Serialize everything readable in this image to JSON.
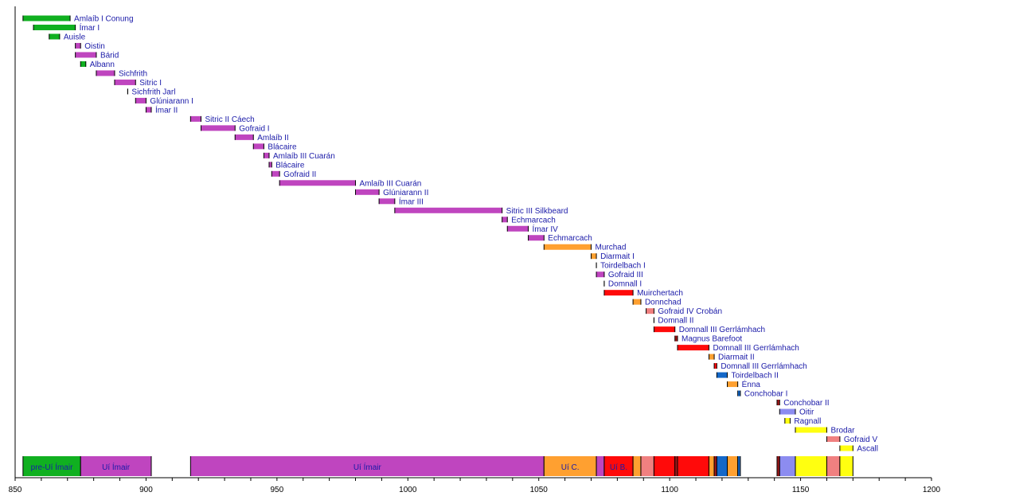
{
  "chart_data": {
    "type": "timeline",
    "xlim": [
      850,
      1200
    ],
    "x_ticks_major": [
      850,
      900,
      950,
      1000,
      1050,
      1100,
      1150,
      1200
    ],
    "x_tick_minor_step": 10,
    "grid": false,
    "colors": {
      "pre_ui_imair": "#10b020",
      "ui_imair": "#bf45bf",
      "ui_c": "#ffa030",
      "ui_b": "#ff0a0a",
      "norse": "#a01818",
      "salmon": "#f08080",
      "blue": "#1468c8",
      "lavender": "#8c8cf0",
      "yellow": "#ffff10"
    },
    "rows": [
      {
        "label": "Amlaíb I Conung",
        "start": 853,
        "end": 871,
        "group": "pre_ui_imair"
      },
      {
        "label": "Ímar I",
        "start": 857,
        "end": 873,
        "group": "pre_ui_imair"
      },
      {
        "label": "Auisle",
        "start": 863,
        "end": 867,
        "group": "pre_ui_imair"
      },
      {
        "label": "Oistin",
        "start": 873,
        "end": 875,
        "group": "ui_imair"
      },
      {
        "label": "Bárid",
        "start": 873,
        "end": 881,
        "group": "ui_imair"
      },
      {
        "label": "Albann",
        "start": 875,
        "end": 877,
        "group": "pre_ui_imair"
      },
      {
        "label": "Sichfrith",
        "start": 881,
        "end": 888,
        "group": "ui_imair"
      },
      {
        "label": "Sitric I",
        "start": 888,
        "end": 896,
        "group": "ui_imair"
      },
      {
        "label": "Sichfrith Jarl",
        "start": 893,
        "end": 893,
        "group": "ui_imair"
      },
      {
        "label": "Glúniarann I",
        "start": 896,
        "end": 900,
        "group": "ui_imair"
      },
      {
        "label": "Ímar II",
        "start": 900,
        "end": 902,
        "group": "ui_imair"
      },
      {
        "label": "Sitric II Cáech",
        "start": 917,
        "end": 921,
        "group": "ui_imair"
      },
      {
        "label": "Gofraid I",
        "start": 921,
        "end": 934,
        "group": "ui_imair"
      },
      {
        "label": "Amlaíb II",
        "start": 934,
        "end": 941,
        "group": "ui_imair"
      },
      {
        "label": "Blácaire",
        "start": 941,
        "end": 945,
        "group": "ui_imair"
      },
      {
        "label": "Amlaíb III Cuarán",
        "start": 945,
        "end": 947,
        "group": "ui_imair"
      },
      {
        "label": "Blácaire",
        "start": 947,
        "end": 948,
        "group": "ui_imair"
      },
      {
        "label": "Gofraid II",
        "start": 948,
        "end": 951,
        "group": "ui_imair"
      },
      {
        "label": "Amlaíb III Cuarán",
        "start": 951,
        "end": 980,
        "group": "ui_imair"
      },
      {
        "label": "Glúniarann II",
        "start": 980,
        "end": 989,
        "group": "ui_imair"
      },
      {
        "label": "Ímar III",
        "start": 989,
        "end": 995,
        "group": "ui_imair"
      },
      {
        "label": "Sitric III Silkbeard",
        "start": 995,
        "end": 1036,
        "group": "ui_imair"
      },
      {
        "label": "Echmarcach",
        "start": 1036,
        "end": 1038,
        "group": "ui_imair"
      },
      {
        "label": "Ímar IV",
        "start": 1038,
        "end": 1046,
        "group": "ui_imair"
      },
      {
        "label": "Echmarcach",
        "start": 1046,
        "end": 1052,
        "group": "ui_imair"
      },
      {
        "label": "Murchad",
        "start": 1052,
        "end": 1070,
        "group": "ui_c"
      },
      {
        "label": "Diarmait I",
        "start": 1070,
        "end": 1072,
        "group": "ui_c"
      },
      {
        "label": "Toirdelbach I",
        "start": 1072,
        "end": 1072,
        "group": "ui_c"
      },
      {
        "label": "Gofraid III",
        "start": 1072,
        "end": 1075,
        "group": "ui_imair"
      },
      {
        "label": "Domnall I",
        "start": 1075,
        "end": 1075,
        "group": "ui_b"
      },
      {
        "label": "Muirchertach",
        "start": 1075,
        "end": 1086,
        "group": "ui_b"
      },
      {
        "label": "Donnchad",
        "start": 1086,
        "end": 1089,
        "group": "ui_c"
      },
      {
        "label": "Gofraid IV Crobán",
        "start": 1091,
        "end": 1094,
        "group": "salmon"
      },
      {
        "label": "Domnall II",
        "start": 1094,
        "end": 1094,
        "group": "ui_b"
      },
      {
        "label": "Domnall III Gerrlámhach",
        "start": 1094,
        "end": 1102,
        "group": "ui_b"
      },
      {
        "label": "Magnus Barefoot",
        "start": 1102,
        "end": 1103,
        "group": "norse"
      },
      {
        "label": "Domnall III Gerrlámhach",
        "start": 1103,
        "end": 1115,
        "group": "ui_b"
      },
      {
        "label": "Diarmait II",
        "start": 1115,
        "end": 1117,
        "group": "ui_c"
      },
      {
        "label": "Domnall III Gerrlámhach",
        "start": 1117,
        "end": 1118,
        "group": "ui_b"
      },
      {
        "label": "Toirdelbach II",
        "start": 1118,
        "end": 1122,
        "group": "blue"
      },
      {
        "label": "Énna",
        "start": 1122,
        "end": 1126,
        "group": "ui_c"
      },
      {
        "label": "Conchobar I",
        "start": 1126,
        "end": 1127,
        "group": "blue"
      },
      {
        "label": "Conchobar II",
        "start": 1141,
        "end": 1142,
        "group": "norse"
      },
      {
        "label": "Oitir",
        "start": 1142,
        "end": 1148,
        "group": "lavender"
      },
      {
        "label": "Ragnall",
        "start": 1144,
        "end": 1146,
        "group": "yellow"
      },
      {
        "label": "Brodar",
        "start": 1148,
        "end": 1160,
        "group": "yellow"
      },
      {
        "label": "Gofraid V",
        "start": 1160,
        "end": 1165,
        "group": "salmon"
      },
      {
        "label": "Ascall",
        "start": 1165,
        "end": 1170,
        "group": "yellow"
      }
    ],
    "dynasty_band": [
      {
        "label": "pre-Uí Ímair",
        "start": 853,
        "end": 875,
        "group": "pre_ui_imair"
      },
      {
        "label": "Uí Ímair",
        "start": 875,
        "end": 902,
        "group": "ui_imair"
      },
      {
        "label": "Uí Ímair",
        "start": 917,
        "end": 1052,
        "group": "ui_imair"
      },
      {
        "label": "Uí C.",
        "start": 1052,
        "end": 1072,
        "group": "ui_c"
      },
      {
        "label": "",
        "start": 1072,
        "end": 1075,
        "group": "ui_imair"
      },
      {
        "label": "Uí B.",
        "start": 1075,
        "end": 1086,
        "group": "ui_b"
      },
      {
        "label": "",
        "start": 1086,
        "end": 1089,
        "group": "ui_c"
      },
      {
        "label": "",
        "start": 1089,
        "end": 1094,
        "group": "salmon"
      },
      {
        "label": "",
        "start": 1094,
        "end": 1102,
        "group": "ui_b"
      },
      {
        "label": "",
        "start": 1102,
        "end": 1103,
        "group": "norse"
      },
      {
        "label": "",
        "start": 1103,
        "end": 1115,
        "group": "ui_b"
      },
      {
        "label": "",
        "start": 1115,
        "end": 1117,
        "group": "ui_c"
      },
      {
        "label": "",
        "start": 1117,
        "end": 1118,
        "group": "norse"
      },
      {
        "label": "",
        "start": 1118,
        "end": 1122,
        "group": "blue"
      },
      {
        "label": "",
        "start": 1122,
        "end": 1126,
        "group": "ui_c"
      },
      {
        "label": "",
        "start": 1126,
        "end": 1127,
        "group": "blue"
      },
      {
        "label": "",
        "start": 1141,
        "end": 1142,
        "group": "norse"
      },
      {
        "label": "",
        "start": 1142,
        "end": 1148,
        "group": "lavender"
      },
      {
        "label": "",
        "start": 1148,
        "end": 1160,
        "group": "yellow"
      },
      {
        "label": "",
        "start": 1160,
        "end": 1165,
        "group": "salmon"
      },
      {
        "label": "",
        "start": 1165,
        "end": 1170,
        "group": "yellow"
      }
    ]
  }
}
